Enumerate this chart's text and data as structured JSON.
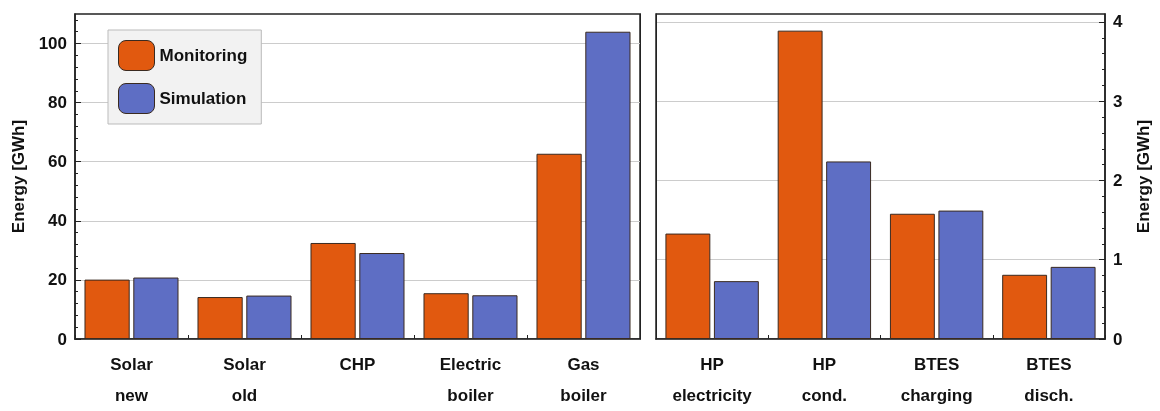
{
  "chart_data": [
    {
      "type": "bar",
      "ylabel": "Energy [GWh]",
      "categories": [
        "Solar\nnew",
        "Solar\nold",
        "CHP",
        "Electric\nboiler",
        "Gas\nboiler"
      ],
      "series": [
        {
          "name": "Monitoring",
          "color": "#e1590f",
          "values": [
            20.1,
            14.2,
            32.5,
            15.5,
            62.7
          ]
        },
        {
          "name": "Simulation",
          "color": "#5e6ec4",
          "values": [
            20.8,
            14.7,
            29.1,
            14.8,
            104.0
          ]
        }
      ],
      "ylim": [
        0,
        110
      ],
      "yticks": [
        0,
        20,
        40,
        60,
        80,
        100
      ],
      "grid": "y",
      "legend": "top left"
    },
    {
      "type": "bar",
      "y2label": "Energy [GWh]",
      "categories": [
        "HP\nelectricity",
        "HP\ncond.",
        "BTES\ncharging",
        "BTES\ndisch."
      ],
      "series": [
        {
          "color": "#e1590f",
          "axis": "y2",
          "values": [
            1.33,
            3.89,
            1.58,
            0.81
          ]
        },
        {
          "color": "#5e6ec4",
          "axis": "y2",
          "values": [
            0.73,
            2.24,
            1.62,
            0.91
          ]
        }
      ],
      "y2lim": [
        0,
        4.1
      ],
      "y2ticks": [
        0,
        1,
        2,
        3,
        4
      ],
      "grid": "y"
    }
  ]
}
